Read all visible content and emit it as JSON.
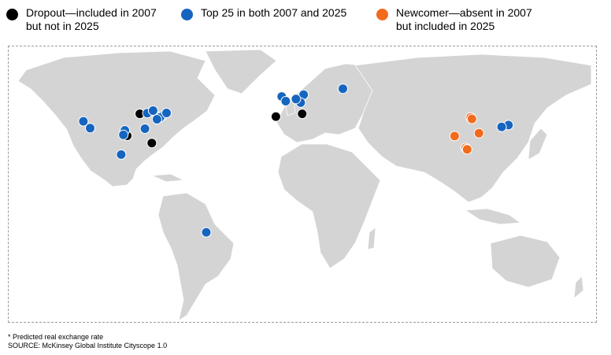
{
  "legend": {
    "dropout": {
      "label": "Dropout—included in 2007\nbut not in 2025",
      "color": "#000000"
    },
    "top25": {
      "label": "Top 25 in both 2007 and 2025",
      "color": "#1565c0"
    },
    "newcomer": {
      "label": "Newcomer—absent in 2007\nbut included in 2025",
      "color": "#f26b1d"
    }
  },
  "map": {
    "city_groups": {
      "dropout": {
        "color": "#000000",
        "coords": [
          [
            41.9,
            -87.6
          ],
          [
            29.8,
            -95.4
          ],
          [
            25.8,
            -80.2
          ],
          [
            40.4,
            -3.7
          ],
          [
            41.9,
            12.5
          ]
        ]
      },
      "top25": {
        "color": "#1565c0",
        "coords": [
          [
            34.0,
            -118.2
          ],
          [
            37.8,
            -122.4
          ],
          [
            32.8,
            -96.8
          ],
          [
            30.3,
            -97.7
          ],
          [
            19.4,
            -99.1
          ],
          [
            42.3,
            -83.0
          ],
          [
            43.7,
            -79.4
          ],
          [
            40.7,
            -74.0
          ],
          [
            39.9,
            -75.2
          ],
          [
            38.9,
            -77.0
          ],
          [
            33.7,
            -84.4
          ],
          [
            42.4,
            -71.1
          ],
          [
            -23.5,
            -46.6
          ],
          [
            51.5,
            -0.1
          ],
          [
            48.9,
            2.4
          ],
          [
            52.5,
            13.4
          ],
          [
            48.1,
            11.6
          ],
          [
            50.1,
            8.7
          ],
          [
            55.8,
            37.6
          ],
          [
            35.7,
            139.7
          ],
          [
            34.7,
            135.5
          ]
        ]
      },
      "newcomer": {
        "color": "#f26b1d",
        "coords": [
          [
            39.9,
            116.4
          ],
          [
            39.1,
            117.2
          ],
          [
            31.2,
            121.5
          ],
          [
            29.6,
            106.5
          ],
          [
            23.1,
            113.3
          ],
          [
            22.5,
            114.1
          ],
          [
            22.3,
            114.2
          ]
        ]
      }
    }
  },
  "footnote": "* Predicted real exchange rate",
  "source": "SOURCE: McKinsey Global Institute Cityscope 1.0"
}
